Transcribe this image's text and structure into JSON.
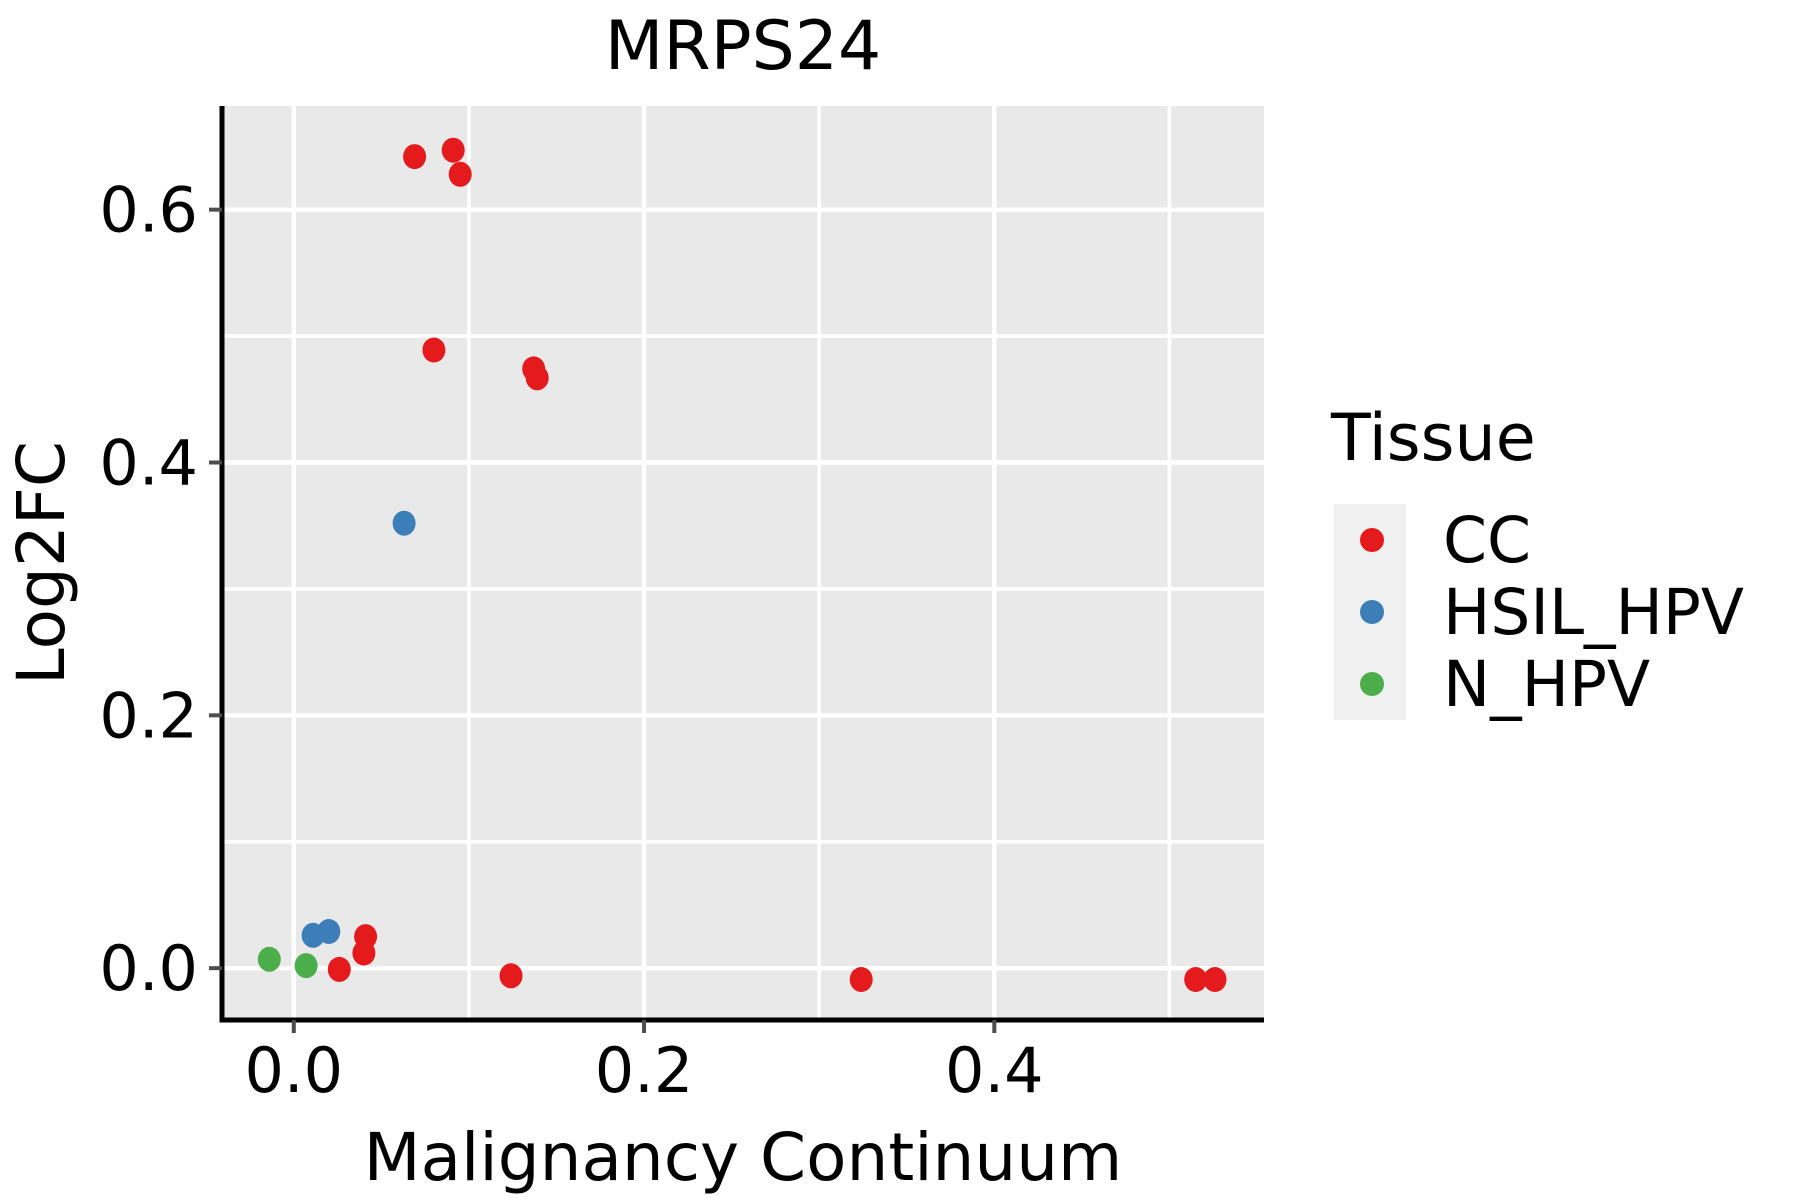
{
  "title": "MRPS24",
  "colors": {
    "panel_bg": "#E9E9E9",
    "grid": "#FFFFFF",
    "spine": "#000000",
    "tick": "#4d4d4d",
    "text": "#000000",
    "legend_key_bg": "#F0F0F0",
    "cc_red": "#E41A1C",
    "hsil_blue": "#3B7EB8",
    "nhpv_green": "#4CAE4A"
  },
  "chart_data": {
    "type": "scatter",
    "title": "MRPS24",
    "xlabel": "Malignancy Continuum",
    "ylabel": "Log2FC",
    "xlim": [
      -0.041,
      0.554
    ],
    "ylim": [
      -0.041,
      0.682
    ],
    "grid": true,
    "x_ticks": {
      "values": [
        0.0,
        0.2,
        0.4
      ],
      "labels": [
        "0.0",
        "0.2",
        "0.4"
      ]
    },
    "y_ticks": {
      "values": [
        0.0,
        0.2,
        0.4,
        0.6
      ],
      "labels": [
        "0.0",
        "0.2",
        "0.4",
        "0.6"
      ]
    },
    "x_minor": [
      0.1,
      0.3,
      0.5
    ],
    "y_minor": [
      0.1,
      0.3,
      0.5
    ],
    "legend": {
      "title": "Tissue",
      "position": "right"
    },
    "series": [
      {
        "name": "CC",
        "color": "#E41A1C",
        "points": [
          [
            0.069,
            0.642
          ],
          [
            0.091,
            0.647
          ],
          [
            0.095,
            0.628
          ],
          [
            0.08,
            0.489
          ],
          [
            0.137,
            0.474
          ],
          [
            0.139,
            0.467
          ],
          [
            0.026,
            -0.001
          ],
          [
            0.04,
            0.012
          ],
          [
            0.041,
            0.025
          ],
          [
            0.124,
            -0.006
          ],
          [
            0.324,
            -0.009
          ],
          [
            0.515,
            -0.009
          ],
          [
            0.526,
            -0.009
          ]
        ]
      },
      {
        "name": "HSIL_HPV",
        "color": "#3B7EB8",
        "points": [
          [
            0.011,
            0.026
          ],
          [
            0.02,
            0.029
          ],
          [
            0.063,
            0.352
          ]
        ]
      },
      {
        "name": "N_HPV",
        "color": "#4CAE4A",
        "points": [
          [
            -0.014,
            0.007
          ],
          [
            0.007,
            0.002
          ]
        ]
      }
    ]
  }
}
